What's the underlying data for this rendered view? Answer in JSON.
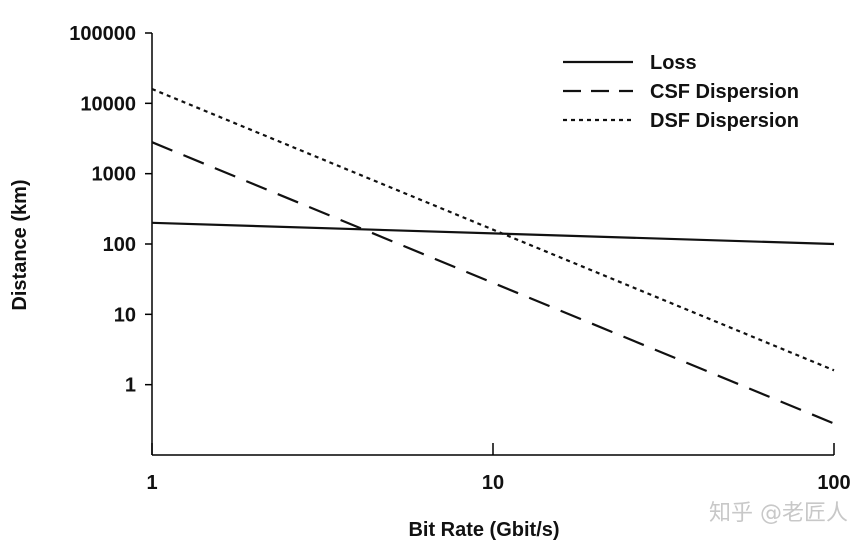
{
  "chart_data": {
    "type": "line",
    "xlabel": "Bit Rate (Gbit/s)",
    "ylabel": "Distance (km)",
    "x_scale": "log",
    "y_scale": "log",
    "xlim": [
      1,
      100
    ],
    "ylim": [
      0.1,
      100000
    ],
    "x_ticks": [
      1,
      10,
      100
    ],
    "x_tick_labels": [
      "1",
      "10",
      "100"
    ],
    "y_ticks": [
      1,
      10,
      100,
      1000,
      10000,
      100000
    ],
    "y_tick_labels": [
      "1",
      "10",
      "100",
      "1000",
      "10000",
      "100000"
    ],
    "grid": false,
    "legend_position": "top-right",
    "series": [
      {
        "name": "Loss",
        "style": "solid",
        "x": [
          1,
          100
        ],
        "y": [
          200,
          100
        ]
      },
      {
        "name": "CSF Dispersion",
        "style": "dashed",
        "x": [
          1,
          100
        ],
        "y": [
          2800,
          0.28
        ]
      },
      {
        "name": "DSF Dispersion",
        "style": "dotted",
        "x": [
          1,
          100
        ],
        "y": [
          16000,
          1.6
        ]
      }
    ]
  },
  "watermark": "知乎 @老匠人",
  "colors": {
    "line": "#111111",
    "axis": "#000000",
    "background": "#ffffff"
  }
}
